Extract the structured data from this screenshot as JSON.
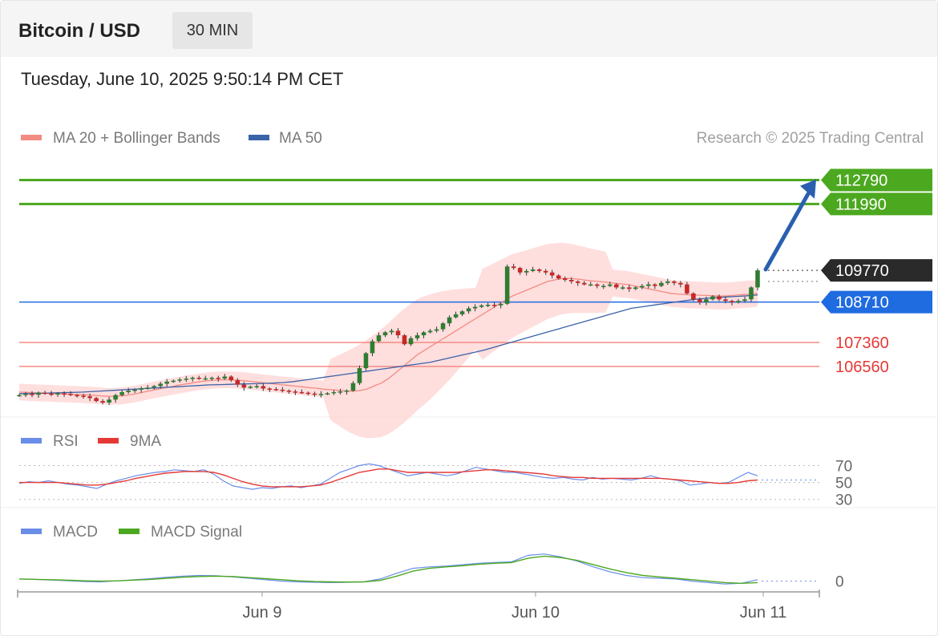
{
  "header": {
    "title": "Bitcoin / USD",
    "interval": "30 MIN",
    "datetime": "Tuesday, June 10, 2025 9:50:14 PM CET"
  },
  "credit": "Research © 2025 Trading Central",
  "colors": {
    "resistance": "#4ca81f",
    "support": "#f28b82",
    "pivot": "#1f6be0",
    "last": "#2a2a2a",
    "bollinger": "#ffd6d6",
    "ma20": "#f28b82",
    "ma50": "#3b63a8",
    "rsi": "#6a8de8",
    "rsi_ma": "#e53935",
    "macd": "#6a8de8",
    "macd_signal": "#4ca81f",
    "arrow": "#2a5fb0"
  },
  "chart_data": [
    {
      "type": "candlestick",
      "legend": [
        {
          "name": "MA 20 + Bollinger Bands",
          "color": "#f28b82"
        },
        {
          "name": "MA 50",
          "color": "#3b63a8"
        }
      ],
      "ylim": [
        105000,
        113500
      ],
      "x_ticks": [
        "Jun 9",
        "Jun 10",
        "Jun 11"
      ],
      "levels": [
        {
          "value": 112790,
          "label": "112790",
          "kind": "resistance"
        },
        {
          "value": 111990,
          "label": "111990",
          "kind": "resistance"
        },
        {
          "value": 109770,
          "label": "109770",
          "kind": "last"
        },
        {
          "value": 108710,
          "label": "108710",
          "kind": "pivot"
        },
        {
          "value": 107360,
          "label": "107360",
          "kind": "support"
        },
        {
          "value": 106560,
          "label": "106560",
          "kind": "support"
        }
      ],
      "close": [
        105600,
        105640,
        105610,
        105680,
        105650,
        105620,
        105660,
        105640,
        105600,
        105580,
        105560,
        105500,
        105400,
        105350,
        105450,
        105600,
        105700,
        105750,
        105780,
        105820,
        105850,
        105900,
        105980,
        106050,
        106080,
        106120,
        106150,
        106180,
        106150,
        106160,
        106180,
        106150,
        106220,
        106100,
        105950,
        105850,
        105880,
        105900,
        105820,
        105800,
        105780,
        105750,
        105720,
        105700,
        105680,
        105650,
        105620,
        105640,
        105660,
        105700,
        105720,
        105750,
        106000,
        106500,
        107000,
        107400,
        107600,
        107700,
        107750,
        107600,
        107300,
        107500,
        107600,
        107700,
        107750,
        107800,
        108000,
        108200,
        108300,
        108400,
        108500,
        108550,
        108600,
        108620,
        108600,
        108650,
        109900,
        109850,
        109700,
        109750,
        109800,
        109750,
        109700,
        109600,
        109500,
        109450,
        109400,
        109350,
        109300,
        109300,
        109250,
        109250,
        109300,
        109200,
        109200,
        109150,
        109200,
        109250,
        109300,
        109250,
        109350,
        109400,
        109350,
        109300,
        109000,
        108800,
        108700,
        108800,
        108900,
        108800,
        108750,
        108700,
        108750,
        108800,
        109200,
        109770
      ],
      "ma20": [
        105700,
        105690,
        105680,
        105670,
        105660,
        105650,
        105640,
        105630,
        105620,
        105610,
        105600,
        105580,
        105560,
        105560,
        105570,
        105600,
        105640,
        105690,
        105740,
        105790,
        105840,
        105880,
        105930,
        105970,
        106010,
        106050,
        106080,
        106100,
        106110,
        106110,
        106100,
        106080,
        106060,
        106030,
        106000,
        105980,
        105950,
        105930,
        105900,
        105880,
        105850,
        105830,
        105800,
        105780,
        105760,
        105740,
        105730,
        105750,
        105800,
        105900,
        106000,
        106150,
        106350,
        106550,
        106750,
        106950,
        107100,
        107250,
        107400,
        107550,
        107700,
        107850,
        108000,
        108150,
        108300,
        108450,
        108600,
        108750,
        108900,
        109000,
        109100,
        109200,
        109300,
        109400,
        109450,
        109500,
        109500,
        109480,
        109450,
        109420,
        109400,
        109380,
        109350,
        109320,
        109300,
        109250,
        109200,
        109150,
        109100,
        109050,
        109000,
        108980,
        108960,
        108950,
        108940,
        108930,
        108920,
        108910,
        108920,
        108940,
        108960,
        108980,
        109000
      ],
      "ma50": [
        105650,
        105650,
        105660,
        105670,
        105680,
        105690,
        105700,
        105720,
        105740,
        105760,
        105780,
        105800,
        105820,
        105840,
        105860,
        105880,
        105900,
        105920,
        105940,
        105950,
        105960,
        105970,
        105980,
        105990,
        106000,
        106020,
        106050,
        106100,
        106150,
        106200,
        106250,
        106300,
        106350,
        106400,
        106450,
        106500,
        106550,
        106600,
        106650,
        106700,
        106780,
        106860,
        106940,
        107020,
        107100,
        107200,
        107300,
        107400,
        107500,
        107600,
        107700,
        107800,
        107900,
        108000,
        108100,
        108200,
        108300,
        108400,
        108500,
        108550,
        108600,
        108650,
        108700,
        108750,
        108800,
        108830,
        108860,
        108880,
        108900,
        108920,
        108950
      ]
    },
    {
      "type": "line",
      "legend": [
        {
          "name": "RSI",
          "color": "#6a8de8"
        },
        {
          "name": "9MA",
          "color": "#e53935"
        }
      ],
      "ylim": [
        25,
        80
      ],
      "levels": [
        70,
        50,
        30
      ],
      "level_labels": [
        "70",
        "50",
        "30"
      ],
      "rsi": [
        49,
        51,
        50,
        52,
        50,
        48,
        47,
        45,
        43,
        48,
        52,
        55,
        58,
        60,
        62,
        63,
        65,
        64,
        63,
        65,
        60,
        52,
        46,
        44,
        42,
        44,
        43,
        45,
        46,
        44,
        46,
        48,
        55,
        62,
        66,
        70,
        72,
        70,
        66,
        62,
        58,
        60,
        62,
        60,
        58,
        60,
        64,
        68,
        66,
        64,
        62,
        62,
        60,
        58,
        56,
        55,
        56,
        54,
        53,
        56,
        54,
        55,
        54,
        53,
        55,
        58,
        55,
        54,
        52,
        47,
        48,
        50,
        49,
        50,
        56,
        62,
        58
      ],
      "ma": [
        50,
        50,
        50,
        50,
        50,
        49,
        48,
        47,
        47,
        48,
        50,
        52,
        55,
        57,
        59,
        61,
        62,
        63,
        63,
        63,
        62,
        59,
        55,
        51,
        48,
        46,
        45,
        45,
        45,
        45,
        46,
        47,
        50,
        54,
        58,
        62,
        64,
        66,
        66,
        64,
        62,
        62,
        62,
        62,
        62,
        62,
        63,
        64,
        65,
        65,
        64,
        63,
        62,
        61,
        60,
        58,
        57,
        56,
        56,
        55,
        55,
        55,
        55,
        55,
        55,
        55,
        55,
        54,
        53,
        52,
        51,
        50,
        49,
        49,
        50,
        52,
        53
      ]
    },
    {
      "type": "line",
      "legend": [
        {
          "name": "MACD",
          "color": "#6a8de8"
        },
        {
          "name": "MACD Signal",
          "color": "#4ca81f"
        }
      ],
      "ylim": [
        -150,
        500
      ],
      "zero_label": "0",
      "macd": [
        30,
        25,
        15,
        5,
        -5,
        -10,
        5,
        20,
        35,
        55,
        70,
        80,
        75,
        60,
        40,
        20,
        0,
        -10,
        -15,
        -20,
        -15,
        -10,
        30,
        110,
        180,
        200,
        210,
        230,
        250,
        260,
        270,
        360,
        380,
        340,
        280,
        200,
        130,
        80,
        50,
        40,
        30,
        0,
        -20,
        -40,
        -30,
        20
      ],
      "signal": [
        30,
        25,
        20,
        12,
        5,
        0,
        5,
        15,
        25,
        40,
        55,
        65,
        70,
        65,
        50,
        35,
        20,
        5,
        -5,
        -10,
        -12,
        -10,
        10,
        70,
        140,
        180,
        200,
        215,
        235,
        250,
        260,
        320,
        350,
        330,
        290,
        230,
        170,
        120,
        80,
        60,
        40,
        20,
        0,
        -20,
        -30,
        -20
      ]
    }
  ]
}
